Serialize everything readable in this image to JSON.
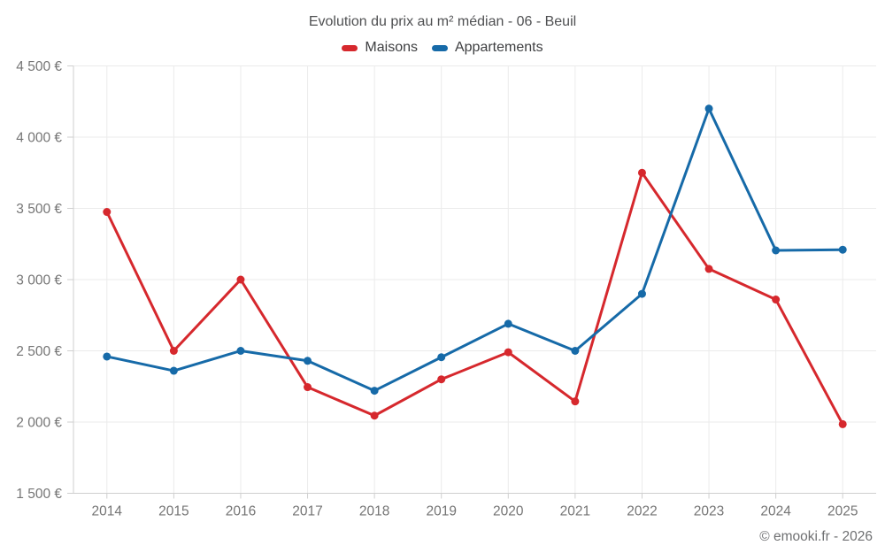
{
  "title": "Evolution du prix au m² médian - 06 - Beuil",
  "footer": "© emooki.fr - 2026",
  "chart_data": {
    "type": "line",
    "x": [
      2014,
      2015,
      2016,
      2017,
      2018,
      2019,
      2020,
      2021,
      2022,
      2023,
      2024,
      2025
    ],
    "series": [
      {
        "name": "Maisons",
        "color": "#d6282d",
        "values": [
          3475,
          2500,
          3000,
          2245,
          2045,
          2300,
          2490,
          2145,
          3750,
          3075,
          2860,
          1985
        ]
      },
      {
        "name": "Appartements",
        "color": "#166aa8",
        "values": [
          2460,
          2360,
          2500,
          2430,
          2220,
          2455,
          2690,
          2500,
          2900,
          4200,
          3205,
          3210
        ]
      }
    ],
    "title": "Evolution du prix au m² médian - 06 - Beuil",
    "xlabel": "",
    "ylabel": "",
    "ylim": [
      1500,
      4500
    ],
    "ytick_step": 500,
    "ytick_suffix": " €",
    "grid": true,
    "legend_position": "top",
    "marker": "circle"
  }
}
